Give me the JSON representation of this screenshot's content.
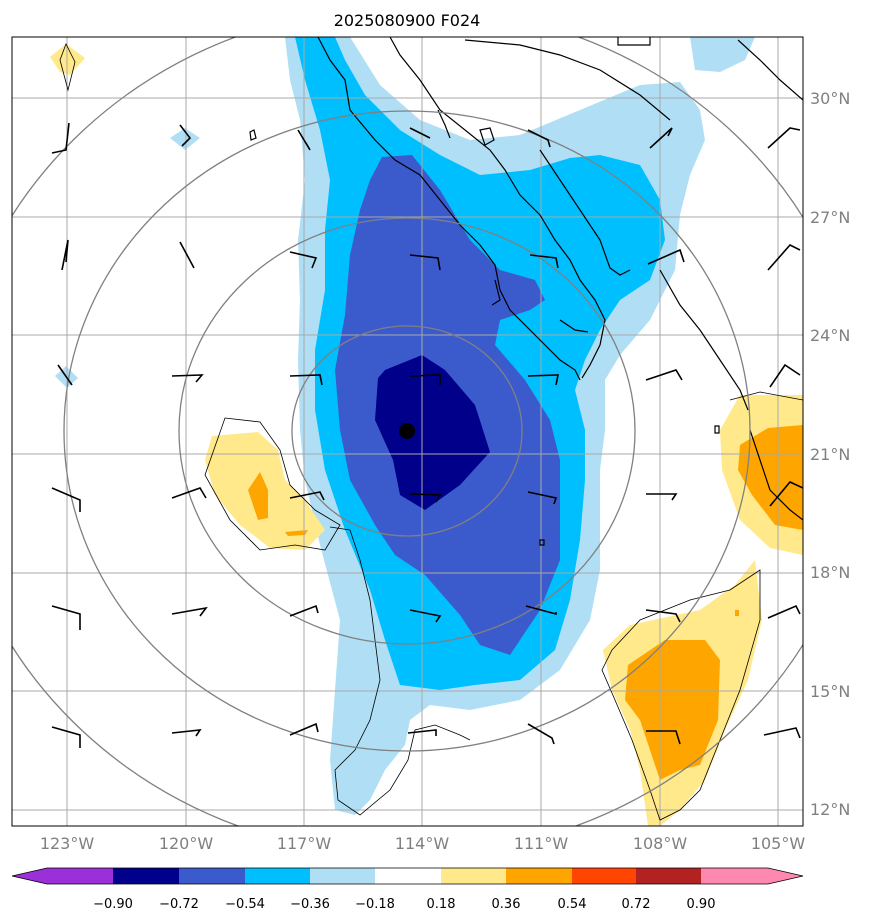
{
  "title": "2025080900 F024",
  "map": {
    "lon_range": [
      -124,
      -104.5
    ],
    "lat_range": [
      11.6,
      31.6
    ],
    "lon_ticks": [
      {
        "value": -123,
        "label": "123°W"
      },
      {
        "value": -120,
        "label": "120°W"
      },
      {
        "value": -117,
        "label": "117°W"
      },
      {
        "value": -114,
        "label": "114°W"
      },
      {
        "value": -111,
        "label": "111°W"
      },
      {
        "value": -108,
        "label": "108°W"
      },
      {
        "value": -105,
        "label": "105°W"
      }
    ],
    "lat_ticks": [
      {
        "value": 12,
        "label": "12°N"
      },
      {
        "value": 15,
        "label": "15°N"
      },
      {
        "value": 18,
        "label": "18°N"
      },
      {
        "value": 21,
        "label": "21°N"
      },
      {
        "value": 24,
        "label": "24°N"
      },
      {
        "value": 27,
        "label": "27°N"
      },
      {
        "value": 30,
        "label": "30°N"
      }
    ],
    "storm_center": {
      "lon": -114.4,
      "lat": 21.6
    },
    "range_rings_deg": [
      3,
      6,
      9,
      12
    ],
    "grid": true
  },
  "colorbar": {
    "levels": [
      "−0.90",
      "−0.72",
      "−0.54",
      "−0.36",
      "−0.18",
      "0.18",
      "0.36",
      "0.54",
      "0.72",
      "0.90"
    ],
    "colors": [
      "#9b30d9",
      "#00008b",
      "#3b5bcc",
      "#00bfff",
      "#b0dff5",
      "#ffffff",
      "#ffe98a",
      "#ffa500",
      "#ff4500",
      "#b22222",
      "#ff88b0"
    ]
  },
  "colors": {
    "level_neg090": "#00008b",
    "level_neg072": "#3b5bcc",
    "level_neg054": "#00bfff",
    "level_neg036": "#b0dff5",
    "level_pos018": "#ffe98a",
    "level_pos036": "#ffa500",
    "grid": "#a9a9a9",
    "rings": "#808080"
  }
}
